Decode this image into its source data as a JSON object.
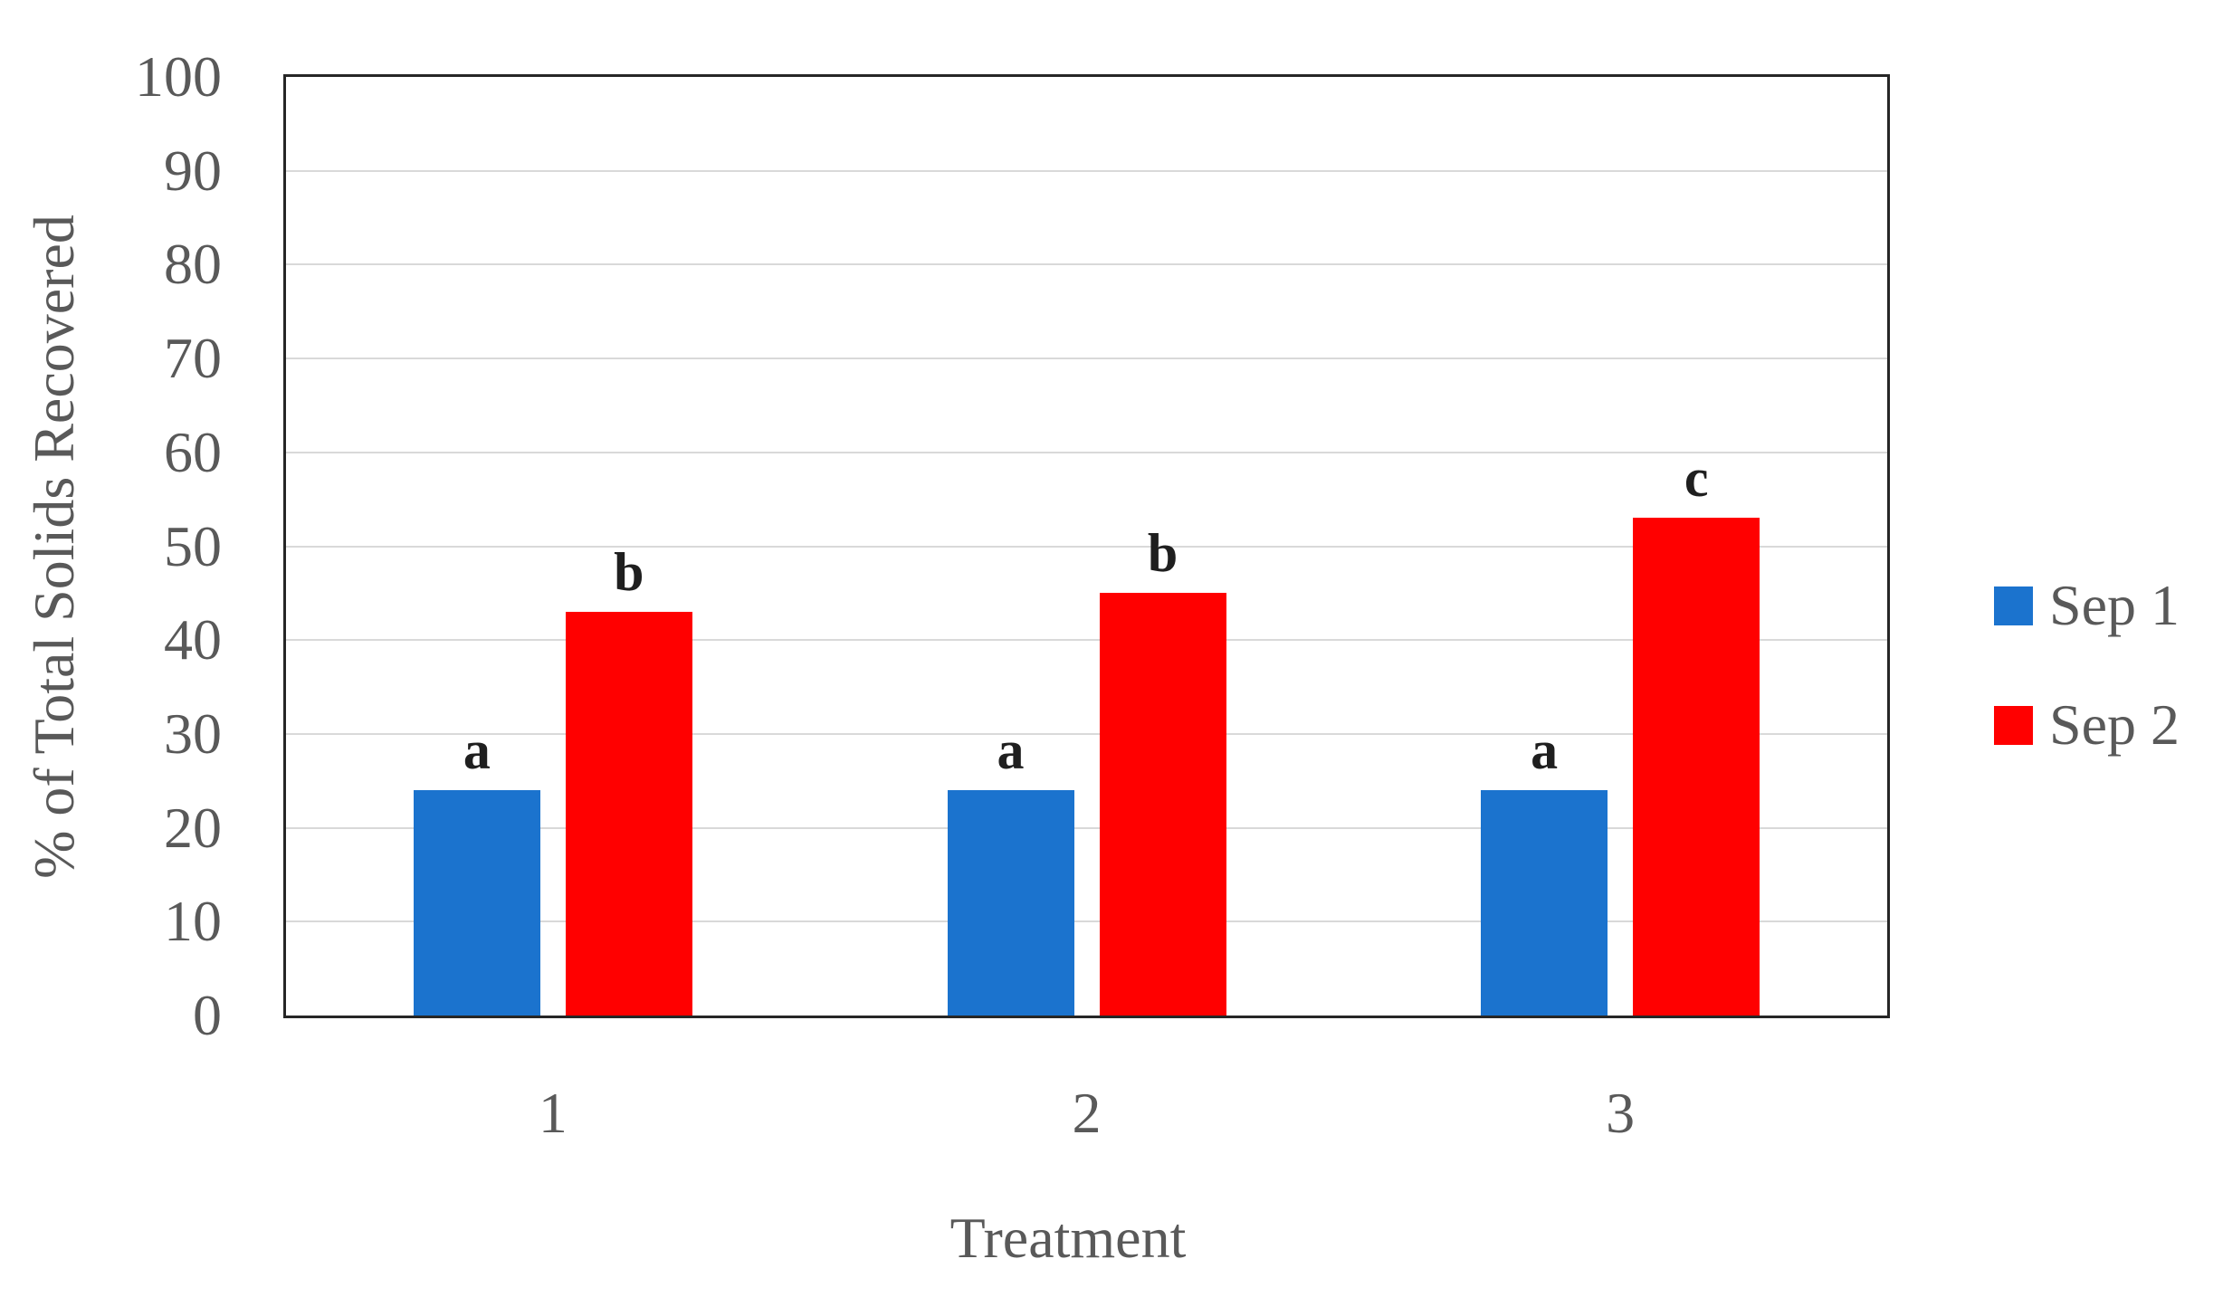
{
  "chart_data": {
    "type": "bar",
    "title": "",
    "xlabel": "Treatment",
    "ylabel": "% of Total Solids Recovered",
    "categories": [
      "1",
      "2",
      "3"
    ],
    "series": [
      {
        "name": "Sep 1",
        "color": "#1B73CE",
        "values": [
          24,
          24,
          24
        ],
        "point_labels": [
          "a",
          "a",
          "a"
        ]
      },
      {
        "name": "Sep 2",
        "color": "#FF0000",
        "values": [
          43,
          45,
          53
        ],
        "point_labels": [
          "b",
          "b",
          "c"
        ]
      }
    ],
    "ylim": [
      0,
      100
    ],
    "ytick_step": 10,
    "grid": true,
    "legend_position": "right"
  },
  "colors": {
    "background": "#FFFFFF",
    "gridline": "#D9D9D9",
    "frame": "#262626",
    "axis_text": "#595959",
    "point_label_text": "#1F1F1F"
  }
}
